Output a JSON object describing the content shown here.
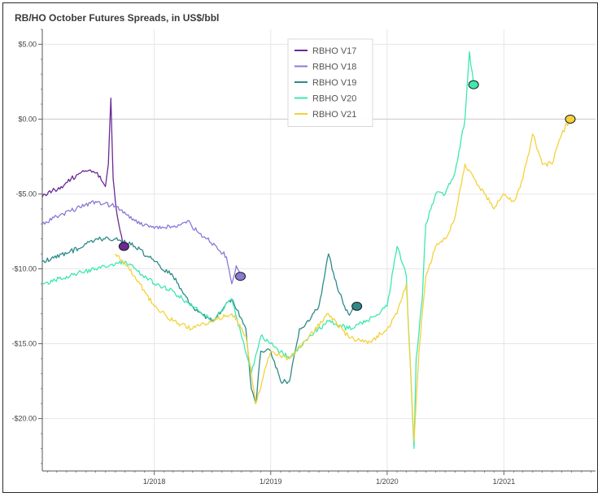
{
  "chart_data": {
    "type": "line",
    "title": "RB/HO October Futures Spreads, in US$/bbl",
    "xlabel": "",
    "ylabel": "",
    "x_range": [
      "2017-01-15",
      "2021-10-15"
    ],
    "ylim": [
      -23.5,
      6.0
    ],
    "y_ticks": [
      5,
      0,
      -5,
      -10,
      -15,
      -20
    ],
    "y_tick_labels": [
      "$5.00",
      "$0.00",
      "-$5.00",
      "-$10.00",
      "-$15.00",
      "-$20.00"
    ],
    "x_ticks": [
      "2018-01-01",
      "2019-01-01",
      "2020-01-01",
      "2021-01-01"
    ],
    "x_tick_labels": [
      "1/2018",
      "1/2019",
      "1/2020",
      "1/2021"
    ],
    "grid": true,
    "legend_position": "top-center",
    "series": [
      {
        "name": "RBHO V17",
        "color": "#6a2a94",
        "x": [
          "2017-01-15",
          "2017-02-15",
          "2017-03-15",
          "2017-04-15",
          "2017-05-15",
          "2017-06-15",
          "2017-07-15",
          "2017-08-01",
          "2017-08-10",
          "2017-08-18",
          "2017-08-25",
          "2017-09-01",
          "2017-09-10",
          "2017-09-20",
          "2017-09-28"
        ],
        "values": [
          -5.2,
          -4.8,
          -4.5,
          -4.0,
          -3.6,
          -3.4,
          -3.8,
          -4.5,
          -3.0,
          1.4,
          -4.0,
          -5.5,
          -6.8,
          -7.8,
          -8.5
        ],
        "end_marker": true
      },
      {
        "name": "RBHO V18",
        "color": "#8a7ad4",
        "x": [
          "2017-01-15",
          "2017-03-01",
          "2017-05-01",
          "2017-07-01",
          "2017-09-01",
          "2017-11-01",
          "2018-01-01",
          "2018-03-01",
          "2018-04-15",
          "2018-05-15",
          "2018-06-15",
          "2018-07-15",
          "2018-08-15",
          "2018-09-01",
          "2018-09-15",
          "2018-09-28"
        ],
        "values": [
          -7.0,
          -6.5,
          -6.0,
          -5.5,
          -5.8,
          -6.8,
          -7.3,
          -7.2,
          -6.8,
          -7.5,
          -8.0,
          -8.5,
          -9.2,
          -11.0,
          -9.8,
          -10.5
        ],
        "end_marker": true
      },
      {
        "name": "RBHO V19",
        "color": "#2e8a8a",
        "x": [
          "2017-01-15",
          "2017-04-01",
          "2017-07-01",
          "2017-09-01",
          "2017-11-01",
          "2018-01-01",
          "2018-03-01",
          "2018-05-01",
          "2018-07-01",
          "2018-09-01",
          "2018-10-15",
          "2018-11-01",
          "2018-11-15",
          "2018-12-01",
          "2019-01-01",
          "2019-02-01",
          "2019-03-01",
          "2019-04-01",
          "2019-05-01",
          "2019-06-01",
          "2019-07-01",
          "2019-08-01",
          "2019-09-01",
          "2019-09-28"
        ],
        "values": [
          -9.5,
          -9.0,
          -8.0,
          -8.0,
          -8.5,
          -9.5,
          -10.5,
          -12.5,
          -13.5,
          -12.0,
          -14.0,
          -18.0,
          -19.0,
          -15.5,
          -15.5,
          -17.5,
          -17.5,
          -14.0,
          -13.5,
          -12.5,
          -9.0,
          -11.5,
          -13.0,
          -12.5
        ],
        "end_marker": true
      },
      {
        "name": "RBHO V20",
        "color": "#3de8b0",
        "x": [
          "2017-01-15",
          "2017-04-01",
          "2017-07-01",
          "2017-10-01",
          "2018-01-01",
          "2018-03-01",
          "2018-05-01",
          "2018-07-01",
          "2018-09-01",
          "2018-11-01",
          "2018-12-01",
          "2019-01-01",
          "2019-03-01",
          "2019-05-01",
          "2019-07-01",
          "2019-09-01",
          "2019-11-01",
          "2020-01-01",
          "2020-02-01",
          "2020-03-01",
          "2020-03-25",
          "2020-04-01",
          "2020-04-20",
          "2020-05-01",
          "2020-06-01",
          "2020-07-01",
          "2020-08-01",
          "2020-09-01",
          "2020-09-15",
          "2020-09-28"
        ],
        "values": [
          -11.0,
          -10.5,
          -10.0,
          -9.5,
          -11.0,
          -11.5,
          -12.5,
          -13.5,
          -12.0,
          -17.0,
          -14.5,
          -15.0,
          -16.0,
          -14.5,
          -13.5,
          -14.0,
          -13.5,
          -12.5,
          -8.5,
          -10.5,
          -22.0,
          -16.0,
          -12.0,
          -7.0,
          -5.0,
          -5.0,
          -3.5,
          0.0,
          4.5,
          2.3
        ],
        "end_marker": true
      },
      {
        "name": "RBHO V21",
        "color": "#f3d23c",
        "x": [
          "2017-09-01",
          "2017-11-01",
          "2018-01-01",
          "2018-03-01",
          "2018-05-01",
          "2018-07-01",
          "2018-09-01",
          "2018-10-15",
          "2018-11-15",
          "2019-01-01",
          "2019-03-01",
          "2019-05-01",
          "2019-07-01",
          "2019-09-01",
          "2019-11-01",
          "2020-01-01",
          "2020-02-01",
          "2020-03-01",
          "2020-03-25",
          "2020-04-10",
          "2020-05-01",
          "2020-06-01",
          "2020-07-01",
          "2020-08-01",
          "2020-09-01",
          "2020-10-01",
          "2020-11-01",
          "2020-12-01",
          "2021-01-01",
          "2021-02-01",
          "2021-03-01",
          "2021-04-01",
          "2021-05-01",
          "2021-06-01",
          "2021-07-01",
          "2021-07-28"
        ],
        "values": [
          -9.0,
          -10.5,
          -12.5,
          -13.5,
          -14.0,
          -13.5,
          -13.0,
          -14.5,
          -19.0,
          -15.5,
          -16.0,
          -14.5,
          -13.0,
          -14.5,
          -15.0,
          -14.0,
          -13.0,
          -11.0,
          -21.5,
          -15.5,
          -10.5,
          -8.5,
          -8.0,
          -6.5,
          -3.0,
          -4.0,
          -5.0,
          -6.0,
          -5.0,
          -5.5,
          -4.0,
          -1.0,
          -3.0,
          -3.0,
          -1.0,
          0.0
        ],
        "end_marker": true
      }
    ]
  }
}
